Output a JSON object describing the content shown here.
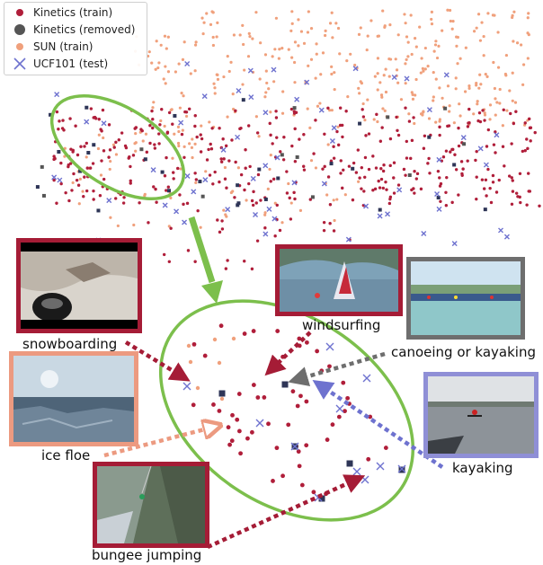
{
  "legend": {
    "items": [
      {
        "label": "Kinetics (train)",
        "marker": "dot",
        "color": "#b01e3a"
      },
      {
        "label": "Kinetics (removed)",
        "marker": "square",
        "color": "#555555"
      },
      {
        "label": "SUN (train)",
        "marker": "dot",
        "color": "#f0a07c"
      },
      {
        "label": "UCF101 (test)",
        "marker": "x",
        "color": "#6e72cf"
      }
    ]
  },
  "colors": {
    "kinetics_train": "#b01e3a",
    "kinetics_removed": "#555555",
    "sun_train": "#f0a07c",
    "ucf101_test": "#6e72cf",
    "highlight": "#7cbf4c",
    "frame_kinetics": "#a51c36",
    "frame_sun": "#ec9a80",
    "frame_removed": "#6e6e6e",
    "frame_ucf": "#8f8fd6"
  },
  "examples": [
    {
      "caption": "snowboarding",
      "source": "Kinetics (train)"
    },
    {
      "caption": "windsurfing",
      "source": "Kinetics (train)"
    },
    {
      "caption": "canoeing or kayaking",
      "source": "Kinetics (removed)"
    },
    {
      "caption": "ice floe",
      "source": "SUN (train)"
    },
    {
      "caption": "kayaking",
      "source": "UCF101 (test)"
    },
    {
      "caption": "bungee jumping",
      "source": "Kinetics (train)"
    }
  ]
}
